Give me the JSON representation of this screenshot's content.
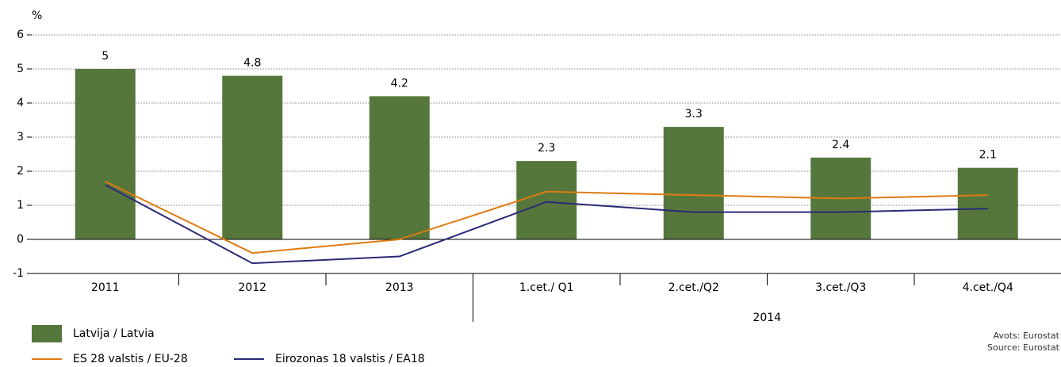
{
  "chart_data": {
    "type": "bar",
    "y_label": "%",
    "categories": [
      "2011",
      "2012",
      "2013",
      "1.cet./ Q1",
      "2.cet./Q2",
      "3.cet./Q3",
      "4.cet./Q4"
    ],
    "group_label": "2014",
    "series": [
      {
        "name": "Latvija / Latvia",
        "type": "bar",
        "color": "#56773b",
        "values": [
          5,
          4.8,
          4.2,
          2.3,
          3.3,
          2.4,
          2.1
        ]
      },
      {
        "name": "ES 28 valstis / EU-28",
        "type": "line",
        "color": "#e07a10",
        "values": [
          1.7,
          -0.4,
          0,
          1.4,
          1.3,
          1.2,
          1.3
        ]
      },
      {
        "name": "Eirozonas 18 valstis / EA18",
        "type": "line",
        "color": "#2a2a7a",
        "values": [
          1.6,
          -0.7,
          -0.5,
          1.1,
          0.8,
          0.8,
          0.9
        ]
      }
    ],
    "ylim": [
      -1,
      6
    ],
    "yticks": [
      -1,
      0,
      1,
      2,
      3,
      4,
      5,
      6
    ],
    "grid": true,
    "source": [
      "Avots: Eurostat",
      "Source: Eurostat"
    ]
  }
}
